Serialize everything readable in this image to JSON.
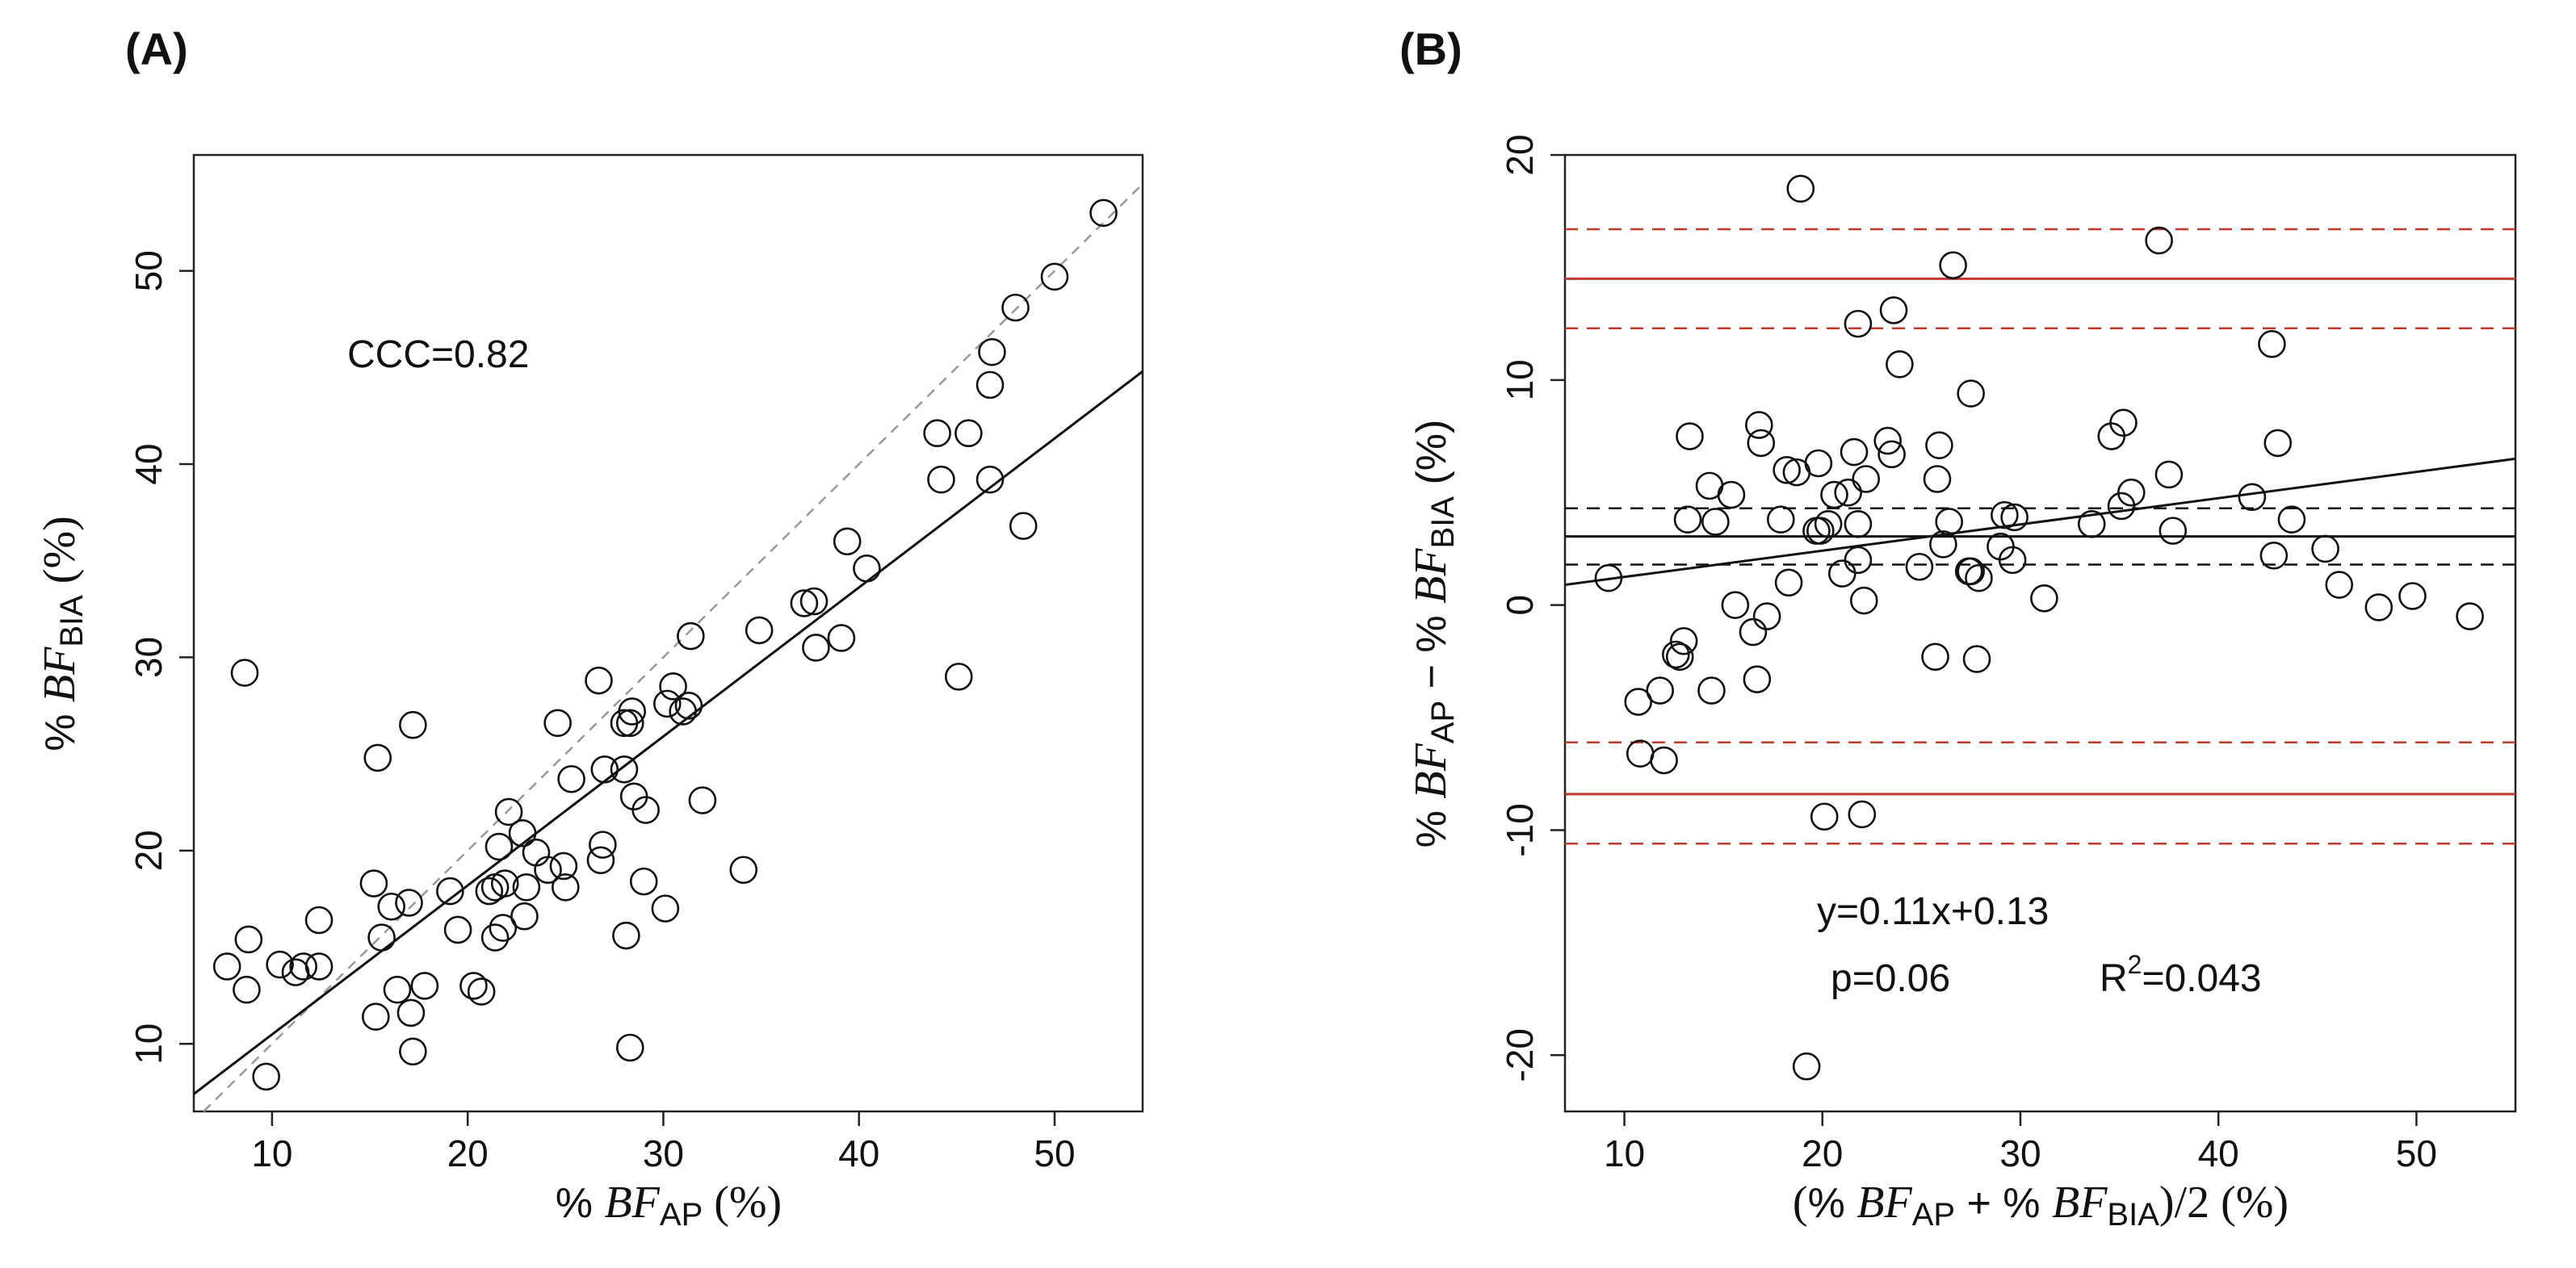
{
  "chart_data": [
    {
      "type": "scatter",
      "panel_label": "(A)",
      "title": "",
      "xlabel": {
        "prefix": "% ",
        "var": "BF",
        "sub": "AP",
        "suffix": "(%)"
      },
      "ylabel": {
        "prefix": "% ",
        "var": "BF",
        "sub": "BIA",
        "suffix": "(%)"
      },
      "xlim": [
        6,
        54.5
      ],
      "ylim": [
        6.5,
        56
      ],
      "xticks": [
        10,
        20,
        30,
        40,
        50
      ],
      "yticks": [
        10,
        20,
        30,
        40,
        50
      ],
      "annotation": "CCC=0.82",
      "identity_line": {
        "slope": 1,
        "intercept": 0,
        "style": "dashed",
        "color": "#999999"
      },
      "fit_line": {
        "x": [
          6,
          54.5
        ],
        "y": [
          7.4,
          44.8
        ],
        "style": "solid",
        "color": "#111111"
      },
      "points": [
        [
          8.6,
          29.2
        ],
        [
          7.7,
          14.0
        ],
        [
          8.7,
          12.8
        ],
        [
          8.8,
          15.4
        ],
        [
          9.7,
          8.3
        ],
        [
          10.4,
          14.1
        ],
        [
          11.2,
          13.7
        ],
        [
          11.6,
          14.0
        ],
        [
          12.4,
          14.0
        ],
        [
          12.4,
          16.4
        ],
        [
          15.2,
          18.3
        ],
        [
          15.3,
          11.4
        ],
        [
          15.4,
          24.8
        ],
        [
          15.6,
          15.5
        ],
        [
          16.1,
          17.1
        ],
        [
          16.4,
          12.8
        ],
        [
          17.0,
          17.3
        ],
        [
          17.2,
          26.5
        ],
        [
          17.1,
          11.6
        ],
        [
          17.2,
          9.6
        ],
        [
          17.8,
          13.0
        ],
        [
          19.1,
          17.9
        ],
        [
          19.5,
          15.9
        ],
        [
          20.3,
          13.0
        ],
        [
          20.7,
          12.7
        ],
        [
          21.1,
          17.9
        ],
        [
          21.4,
          18.1
        ],
        [
          21.4,
          15.5
        ],
        [
          21.6,
          20.2
        ],
        [
          21.8,
          16.0
        ],
        [
          21.9,
          18.3
        ],
        [
          22.1,
          22.0
        ],
        [
          22.8,
          20.9
        ],
        [
          22.9,
          16.6
        ],
        [
          23.0,
          18.1
        ],
        [
          23.5,
          19.9
        ],
        [
          24.1,
          19.0
        ],
        [
          24.6,
          26.6
        ],
        [
          24.9,
          19.2
        ],
        [
          25.0,
          18.1
        ],
        [
          25.3,
          23.7
        ],
        [
          26.7,
          28.8
        ],
        [
          26.8,
          19.5
        ],
        [
          26.9,
          20.3
        ],
        [
          27.0,
          24.2
        ],
        [
          28.0,
          24.2
        ],
        [
          28.0,
          26.6
        ],
        [
          28.1,
          15.6
        ],
        [
          28.3,
          26.6
        ],
        [
          28.3,
          9.8
        ],
        [
          28.4,
          27.2
        ],
        [
          28.5,
          22.8
        ],
        [
          29.0,
          18.4
        ],
        [
          29.1,
          22.1
        ],
        [
          30.1,
          17.0
        ],
        [
          30.2,
          27.6
        ],
        [
          30.5,
          28.5
        ],
        [
          31.0,
          27.2
        ],
        [
          31.3,
          27.5
        ],
        [
          31.4,
          31.1
        ],
        [
          32.0,
          22.6
        ],
        [
          34.1,
          19.0
        ],
        [
          34.9,
          31.4
        ],
        [
          37.2,
          32.8
        ],
        [
          37.7,
          32.9
        ],
        [
          37.8,
          30.5
        ],
        [
          39.1,
          31.0
        ],
        [
          39.4,
          36.0
        ],
        [
          40.4,
          34.6
        ],
        [
          44.0,
          41.6
        ],
        [
          44.2,
          39.2
        ],
        [
          45.1,
          29.0
        ],
        [
          45.6,
          41.6
        ],
        [
          46.7,
          39.2
        ],
        [
          46.7,
          44.1
        ],
        [
          46.8,
          45.8
        ],
        [
          48.0,
          48.1
        ],
        [
          48.4,
          36.8
        ],
        [
          50.0,
          49.7
        ],
        [
          52.5,
          53.0
        ]
      ]
    },
    {
      "type": "scatter",
      "panel_label": "(B)",
      "title": "",
      "xlabel": {
        "open": "(",
        "var1": "BF",
        "sub1": "AP",
        "mid": " + % ",
        "var2": "BF",
        "sub2": "BIA",
        "close": ")/2 (%)",
        "prefix": "% "
      },
      "ylabel": {
        "prefix": "% ",
        "var1": "BF",
        "sub1": "AP",
        "mid": " − % ",
        "var2": "BF",
        "sub2": "BIA",
        "suffix": " (%)"
      },
      "xlim": [
        7,
        55
      ],
      "ylim": [
        -22.5,
        20
      ],
      "xticks": [
        10,
        20,
        30,
        40,
        50
      ],
      "yticks": [
        -20,
        -10,
        0,
        10,
        20
      ],
      "annotations": {
        "equation": "y=0.11x+0.13",
        "p_value": "p=0.06",
        "r2_prefix": "R",
        "r2_exp": "2",
        "r2_value": "=0.043"
      },
      "reference_lines": [
        {
          "y": 16.7,
          "style": "dashed",
          "color": "#c0392b"
        },
        {
          "y": 14.5,
          "style": "solid",
          "color": "#c0392b"
        },
        {
          "y": 12.3,
          "style": "dashed",
          "color": "#c0392b"
        },
        {
          "y": 4.3,
          "style": "dashed",
          "color": "#111111"
        },
        {
          "y": 3.05,
          "style": "solid",
          "color": "#111111"
        },
        {
          "y": 1.8,
          "style": "dashed",
          "color": "#111111"
        },
        {
          "y": -6.1,
          "style": "dashed",
          "color": "#c0392b"
        },
        {
          "y": -8.4,
          "style": "solid",
          "color": "#c0392b"
        },
        {
          "y": -10.6,
          "style": "dashed",
          "color": "#c0392b"
        }
      ],
      "fit_line": {
        "x": [
          7,
          55
        ],
        "y": [
          0.9,
          6.5
        ],
        "style": "solid",
        "color": "#111111"
      },
      "points": [
        [
          9.2,
          1.2
        ],
        [
          10.7,
          -4.3
        ],
        [
          10.8,
          -6.6
        ],
        [
          11.8,
          -3.8
        ],
        [
          12.0,
          -6.9
        ],
        [
          12.6,
          -2.2
        ],
        [
          12.8,
          -2.3
        ],
        [
          13.0,
          -1.6
        ],
        [
          13.2,
          3.8
        ],
        [
          13.3,
          7.5
        ],
        [
          14.3,
          5.3
        ],
        [
          14.4,
          -3.8
        ],
        [
          14.6,
          3.7
        ],
        [
          15.4,
          4.9
        ],
        [
          15.6,
          0.0
        ],
        [
          16.5,
          -1.2
        ],
        [
          16.7,
          -3.3
        ],
        [
          16.8,
          8.0
        ],
        [
          16.9,
          7.2
        ],
        [
          17.2,
          -0.5
        ],
        [
          17.9,
          3.8
        ],
        [
          18.2,
          6.0
        ],
        [
          18.3,
          1.0
        ],
        [
          18.7,
          5.9
        ],
        [
          18.9,
          18.5
        ],
        [
          19.2,
          -20.5
        ],
        [
          19.7,
          3.3
        ],
        [
          19.8,
          6.3
        ],
        [
          19.9,
          3.3
        ],
        [
          20.1,
          -9.4
        ],
        [
          20.3,
          3.6
        ],
        [
          20.6,
          4.9
        ],
        [
          21.0,
          1.4
        ],
        [
          21.3,
          5.0
        ],
        [
          21.6,
          6.8
        ],
        [
          21.8,
          3.6
        ],
        [
          21.8,
          2.0
        ],
        [
          21.8,
          12.5
        ],
        [
          22.0,
          -9.3
        ],
        [
          22.1,
          0.2
        ],
        [
          22.2,
          5.6
        ],
        [
          23.3,
          7.3
        ],
        [
          23.5,
          6.7
        ],
        [
          23.6,
          13.1
        ],
        [
          23.9,
          10.7
        ],
        [
          24.9,
          1.7
        ],
        [
          25.7,
          -2.3
        ],
        [
          25.8,
          5.6
        ],
        [
          25.9,
          7.1
        ],
        [
          26.1,
          2.7
        ],
        [
          26.4,
          3.7
        ],
        [
          26.6,
          15.1
        ],
        [
          27.4,
          1.5
        ],
        [
          27.5,
          9.4
        ],
        [
          27.5,
          1.5
        ],
        [
          27.8,
          -2.4
        ],
        [
          27.9,
          1.2
        ],
        [
          29.0,
          2.6
        ],
        [
          29.2,
          4.0
        ],
        [
          29.6,
          2.0
        ],
        [
          29.7,
          3.9
        ],
        [
          31.2,
          0.3
        ],
        [
          33.6,
          3.6
        ],
        [
          34.6,
          7.5
        ],
        [
          35.1,
          4.4
        ],
        [
          35.2,
          8.1
        ],
        [
          35.6,
          5.0
        ],
        [
          37.0,
          16.2
        ],
        [
          37.5,
          5.8
        ],
        [
          37.7,
          3.3
        ],
        [
          41.7,
          4.8
        ],
        [
          42.7,
          11.6
        ],
        [
          42.8,
          2.2
        ],
        [
          43.0,
          7.2
        ],
        [
          43.7,
          3.8
        ],
        [
          45.4,
          2.5
        ],
        [
          46.1,
          0.9
        ],
        [
          48.1,
          -0.1
        ],
        [
          49.8,
          0.4
        ],
        [
          52.7,
          -0.5
        ]
      ]
    }
  ]
}
